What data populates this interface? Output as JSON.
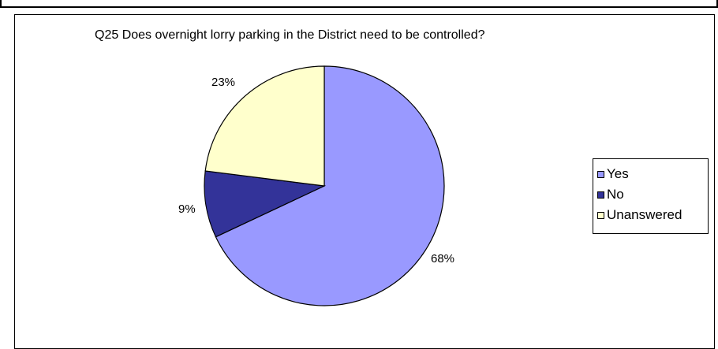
{
  "chart_data": {
    "type": "pie",
    "title": "Q25 Does overnight lorry parking in the District need to be controlled?",
    "categories": [
      "Yes",
      "No",
      "Unanswered"
    ],
    "values": [
      68,
      9,
      23
    ],
    "labels": [
      "68%",
      "9%",
      "23%"
    ],
    "colors": [
      "#9999ff",
      "#333399",
      "#ffffcc"
    ],
    "legend_position": "right"
  }
}
